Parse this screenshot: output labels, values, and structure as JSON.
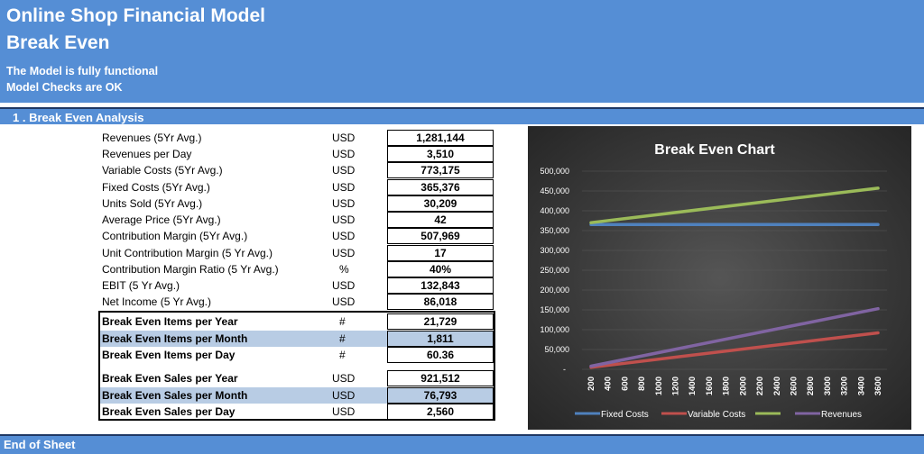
{
  "header": {
    "title": "Online Shop Financial Model",
    "subtitle": "Break Even",
    "status_1": "The Model is fully functional",
    "status_2": "Model Checks are OK"
  },
  "section_title": "1 . Break Even Analysis",
  "footer": "End of Sheet",
  "metrics": [
    {
      "label": "Revenues (5Yr Avg.)",
      "unit": "USD",
      "value": "1,281,144"
    },
    {
      "label": "Revenues per Day",
      "unit": "USD",
      "value": "3,510"
    },
    {
      "label": "Variable Costs (5Yr Avg.)",
      "unit": "USD",
      "value": "773,175"
    },
    {
      "label": "Fixed Costs (5Yr Avg.)",
      "unit": "USD",
      "value": "365,376"
    },
    {
      "label": "Units Sold (5Yr Avg.)",
      "unit": "USD",
      "value": "30,209"
    },
    {
      "label": "Average Price (5Yr Avg.)",
      "unit": "USD",
      "value": "42"
    },
    {
      "label": "Contribution Margin (5Yr Avg.)",
      "unit": "USD",
      "value": "507,969"
    },
    {
      "label": "Unit Contribution Margin (5 Yr Avg.)",
      "unit": "USD",
      "value": "17"
    },
    {
      "label": "Contribution Margin Ratio (5 Yr Avg.)",
      "unit": "%",
      "value": "40%"
    },
    {
      "label": "EBIT (5 Yr Avg.)",
      "unit": "USD",
      "value": "132,843"
    },
    {
      "label": "Net Income (5 Yr Avg.)",
      "unit": "USD",
      "value": "86,018"
    }
  ],
  "break_even_items": [
    {
      "label": "Break Even Items per Year",
      "unit": "#",
      "value": "21,729"
    },
    {
      "label": "Break Even Items per Month",
      "unit": "#",
      "value": "1,811"
    },
    {
      "label": "Break Even Items per Day",
      "unit": "#",
      "value": "60.36"
    }
  ],
  "break_even_sales": [
    {
      "label": "Break Even Sales per Year",
      "unit": "USD",
      "value": "921,512"
    },
    {
      "label": "Break Even Sales per Month",
      "unit": "USD",
      "value": "76,793"
    },
    {
      "label": "Break Even Sales per Day",
      "unit": "USD",
      "value": "2,560"
    }
  ],
  "colors": {
    "header_blue": "#558ed5",
    "highlight": "#b8cce4",
    "fixed_costs": "#4f81bd",
    "variable_costs": "#c0504d",
    "revenues_green": "#9bbb59",
    "revenues_purple": "#8064a2"
  },
  "chart_data": {
    "type": "line",
    "title": "Break Even Chart",
    "x": [
      200,
      400,
      600,
      800,
      1000,
      1200,
      1400,
      1600,
      1800,
      2000,
      2200,
      2400,
      2600,
      2800,
      3000,
      3200,
      3400,
      3600
    ],
    "ylim": [
      0,
      500000
    ],
    "y_ticks": [
      "-",
      "50,000",
      "100,000",
      "150,000",
      "200,000",
      "250,000",
      "300,000",
      "350,000",
      "400,000",
      "450,000",
      "500,000"
    ],
    "legend_position": "bottom",
    "series": [
      {
        "name": "Fixed Costs",
        "color": "#4f81bd",
        "start": 365376,
        "end": 365376
      },
      {
        "name": "Variable Costs",
        "color": "#c0504d",
        "start": 5000,
        "end": 92000
      },
      {
        "name": "",
        "color": "#9bbb59",
        "start": 370000,
        "end": 457000
      },
      {
        "name": "Revenues",
        "color": "#8064a2",
        "start": 8000,
        "end": 153000
      }
    ]
  }
}
